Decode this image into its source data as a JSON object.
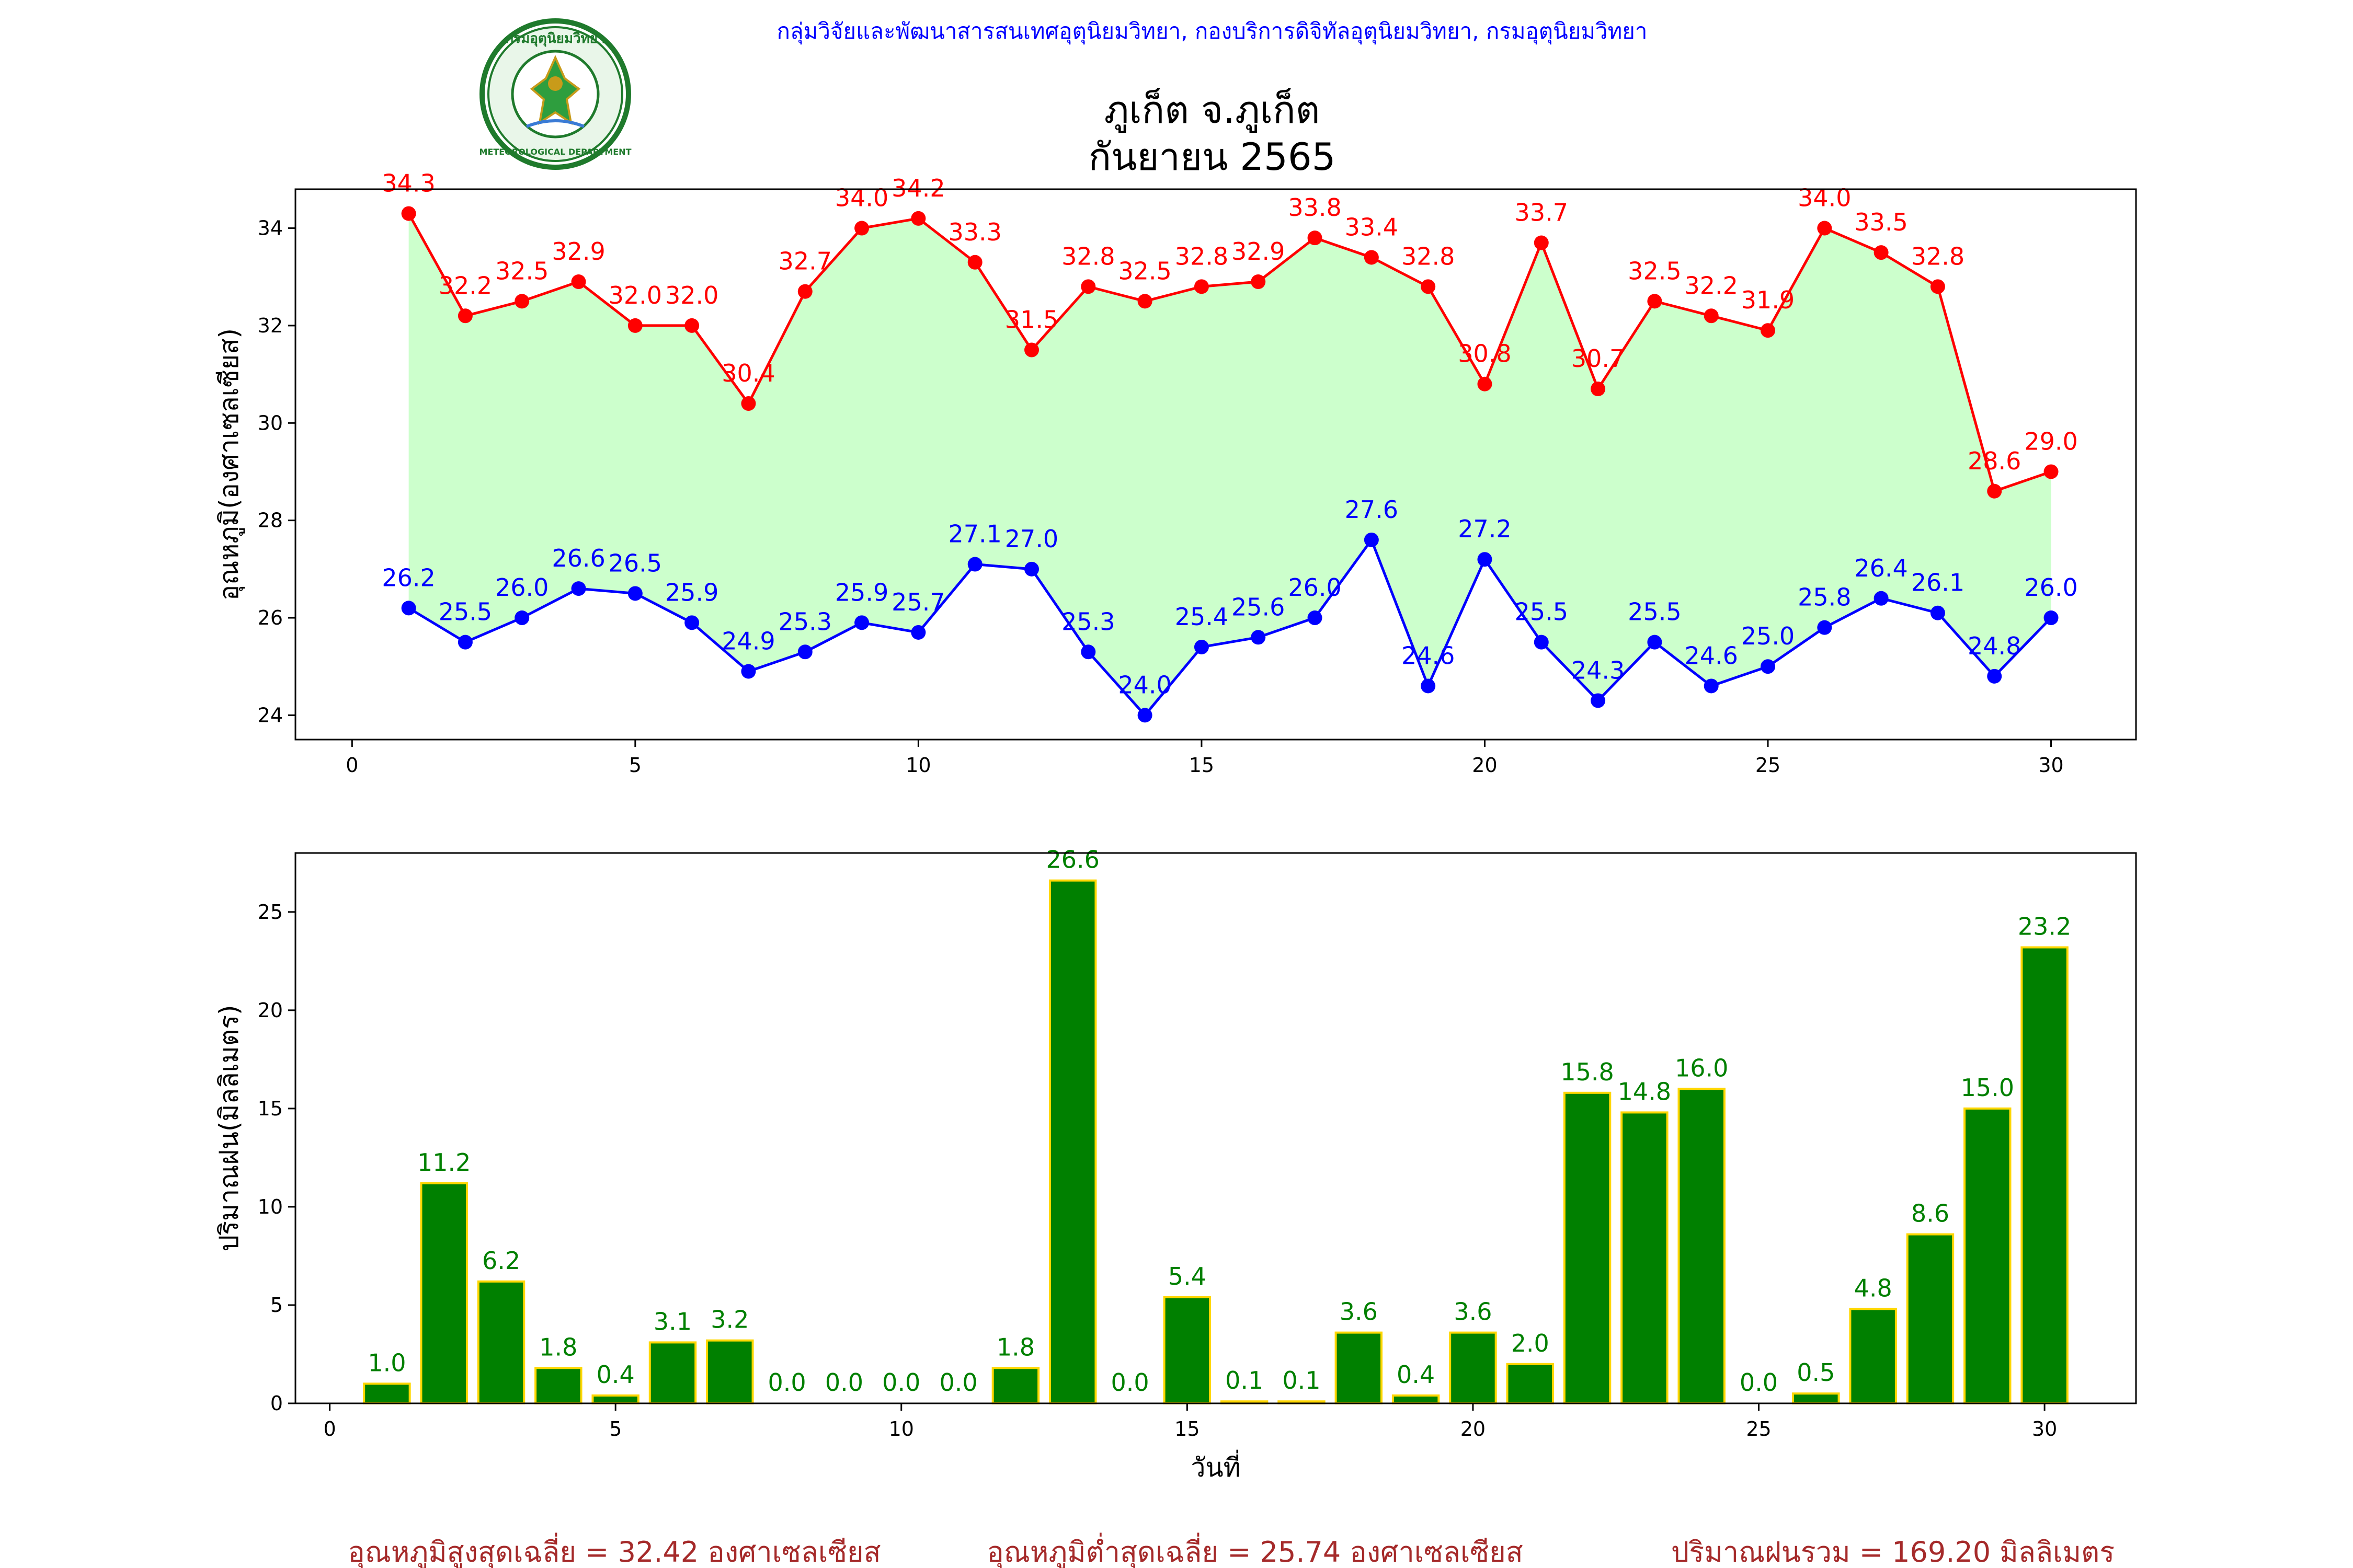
{
  "header": {
    "agency": "กลุ่มวิจัยและพัฒนาสารสนเทศอุตุนิยมวิทยา, กองบริการดิจิทัลอุตุนิยมวิทยา, กรมอุตุนิยมวิทยา",
    "title_line1": "ภูเก็ต จ.ภูเก็ต",
    "title_line2": "กันยายน 2565",
    "logo_text_top": "กรมอุตุนิยมวิทยา",
    "logo_text_bottom": "METEOROLOGICAL DEPARTMENT"
  },
  "colors": {
    "max": "#ff0000",
    "min": "#0000ff",
    "fill": "#ccffcc",
    "bar": "#008000",
    "bar_edge": "#ffd700",
    "agency_text": "#0000ff",
    "summary_text": "#a52a2a"
  },
  "chart_data": [
    {
      "type": "line",
      "ylabel": "อุณหภูมิ(องศาเซลเซียส)",
      "xlabel": "",
      "xlim": [
        -1,
        31.5
      ],
      "ylim": [
        23.5,
        34.8
      ],
      "xticks": [
        0,
        5,
        10,
        15,
        20,
        25,
        30
      ],
      "yticks": [
        24,
        26,
        28,
        30,
        32,
        34
      ],
      "x": [
        1,
        2,
        3,
        4,
        5,
        6,
        7,
        8,
        9,
        10,
        11,
        12,
        13,
        14,
        15,
        16,
        17,
        18,
        19,
        20,
        21,
        22,
        23,
        24,
        25,
        26,
        27,
        28,
        29,
        30
      ],
      "series": [
        {
          "values": [
            34.3,
            32.2,
            32.5,
            32.9,
            32.0,
            32.0,
            30.4,
            32.7,
            34.0,
            34.2,
            33.3,
            31.5,
            32.8,
            32.5,
            32.8,
            32.9,
            33.8,
            33.4,
            32.8,
            30.8,
            33.7,
            30.7,
            32.5,
            32.2,
            31.9,
            34.0,
            33.5,
            32.8,
            28.6,
            29.0
          ]
        },
        {
          "values": [
            26.2,
            25.5,
            26.0,
            26.6,
            26.5,
            25.9,
            24.9,
            25.3,
            25.9,
            25.7,
            27.1,
            27.0,
            25.3,
            24.0,
            25.4,
            25.6,
            26.0,
            27.6,
            24.6,
            27.2,
            25.5,
            24.3,
            25.5,
            24.6,
            25.0,
            25.8,
            26.4,
            26.1,
            24.8,
            26.0
          ]
        }
      ],
      "grid": false,
      "legend": "none"
    },
    {
      "type": "bar",
      "ylabel": "ปริมาณฝน(มิลลิเมตร)",
      "xlabel": "วันที่",
      "xlim": [
        -0.6,
        31.6
      ],
      "ylim": [
        0,
        28
      ],
      "xticks": [
        0,
        5,
        10,
        15,
        20,
        25,
        30
      ],
      "yticks": [
        0,
        5,
        10,
        15,
        20,
        25
      ],
      "x": [
        1,
        2,
        3,
        4,
        5,
        6,
        7,
        8,
        9,
        10,
        11,
        12,
        13,
        14,
        15,
        16,
        17,
        18,
        19,
        20,
        21,
        22,
        23,
        24,
        25,
        26,
        27,
        28,
        29,
        30
      ],
      "values": [
        1.0,
        11.2,
        6.2,
        1.8,
        0.4,
        3.1,
        3.2,
        0.0,
        0.0,
        0.0,
        0.0,
        1.8,
        26.6,
        0.0,
        5.4,
        0.1,
        0.1,
        3.6,
        0.4,
        3.6,
        2.0,
        15.8,
        14.8,
        16.0,
        0.0,
        0.5,
        4.8,
        8.6,
        15.0,
        23.2
      ],
      "grid": false,
      "legend": "none"
    }
  ],
  "summary": {
    "avg_max": "อุณหภูมิสูงสุดเฉลี่ย = 32.42 องศาเซลเซียส",
    "avg_min": "อุณหภูมิต่ำสุดเฉลี่ย = 25.74 องศาเซลเซียส",
    "total_rain": "ปริมาณฝนรวม = 169.20 มิลลิเมตร"
  }
}
